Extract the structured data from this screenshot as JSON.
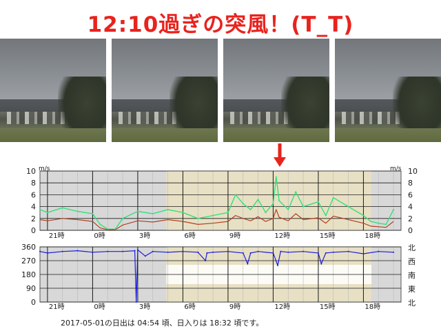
{
  "title": "12:10過ぎの突風！(T_T)",
  "photos": [
    {
      "name": "camera-frame-1"
    },
    {
      "name": "camera-frame-2"
    },
    {
      "name": "camera-frame-3"
    },
    {
      "name": "camera-frame-4"
    }
  ],
  "colors": {
    "title": "#e8231e",
    "arrow": "#e8231e",
    "gust": "#33e07a",
    "mean": "#b0401e",
    "direction": "#1a1adc",
    "daylight": "#e8e0c4",
    "night": "#d8d8d8",
    "grid": "#7a7a7a"
  },
  "chart_data": [
    {
      "type": "line",
      "panel": "wind-speed",
      "yunit_left": "m/s",
      "yunit_right": "m/s",
      "ylim": [
        0,
        10
      ],
      "yticks": [
        0,
        2,
        4,
        6,
        8,
        10
      ],
      "xticks": [
        "21時",
        "0時",
        "3時",
        "6時",
        "9時",
        "12時",
        "15時",
        "18時"
      ],
      "x_hours_range": [
        20.5,
        20.0
      ],
      "daylight": [
        "04:54",
        "18:32"
      ],
      "grid": true,
      "series": [
        {
          "name": "",
          "role": "gust",
          "x": [
            20.5,
            21,
            22,
            23,
            0,
            0.5,
            1,
            1.5,
            2,
            3,
            4,
            5,
            6,
            7,
            8,
            9,
            9.5,
            10,
            10.5,
            11,
            11.5,
            12,
            12.2,
            12.4,
            13,
            13.5,
            14,
            15,
            15.5,
            16,
            17,
            18,
            18.5,
            19,
            19.5,
            20
          ],
          "values": [
            3.5,
            3.0,
            3.8,
            3.2,
            2.8,
            1.0,
            0.2,
            0.2,
            2.0,
            3.2,
            2.8,
            3.5,
            3.0,
            2.0,
            2.5,
            3.0,
            6.0,
            4.5,
            3.5,
            5.2,
            3.0,
            4.5,
            9.0,
            5.0,
            3.5,
            6.5,
            4.0,
            4.8,
            2.5,
            5.5,
            4.0,
            2.5,
            1.5,
            1.2,
            1.0,
            3.5
          ]
        },
        {
          "name": "",
          "role": "mean",
          "x": [
            20.5,
            21,
            22,
            23,
            0,
            0.5,
            1,
            1.5,
            2,
            3,
            4,
            5,
            6,
            7,
            8,
            9,
            9.5,
            10,
            10.5,
            11,
            11.5,
            12,
            12.2,
            12.4,
            13,
            13.5,
            14,
            15,
            15.5,
            16,
            17,
            18,
            18.5,
            19,
            19.5,
            20
          ],
          "values": [
            1.8,
            1.6,
            2.0,
            1.8,
            1.5,
            0.4,
            0.1,
            0.1,
            0.9,
            1.6,
            1.4,
            1.8,
            1.5,
            1.0,
            1.2,
            1.5,
            2.5,
            2.0,
            1.6,
            2.3,
            1.5,
            2.0,
            3.5,
            2.2,
            1.6,
            2.8,
            1.8,
            2.1,
            1.2,
            2.4,
            1.8,
            1.2,
            0.7,
            0.6,
            0.5,
            1.5
          ]
        }
      ]
    },
    {
      "type": "line",
      "panel": "wind-direction",
      "ylim": [
        0,
        360
      ],
      "yticks": [
        0,
        90,
        180,
        270,
        360
      ],
      "right_labels": [
        "北",
        "東",
        "南",
        "西",
        "北"
      ],
      "xticks": [
        "21時",
        "0時",
        "3時",
        "6時",
        "9時",
        "12時",
        "15時",
        "18時"
      ],
      "grid": true,
      "series": [
        {
          "name": "",
          "role": "direction",
          "x": [
            20.5,
            21,
            22,
            23,
            0,
            1,
            2,
            2.8,
            2.9,
            3.0,
            3.5,
            4,
            5,
            6,
            7,
            7.5,
            7.6,
            8,
            9,
            10,
            10.3,
            10.5,
            11,
            12,
            12.3,
            12.5,
            13,
            14,
            15,
            15.2,
            15.5,
            16,
            17,
            18,
            19,
            20
          ],
          "values": [
            330,
            320,
            330,
            335,
            325,
            330,
            330,
            335,
            0,
            340,
            300,
            330,
            325,
            330,
            325,
            270,
            320,
            325,
            330,
            320,
            250,
            320,
            330,
            320,
            240,
            330,
            325,
            330,
            320,
            250,
            320,
            325,
            330,
            315,
            330,
            325
          ]
        }
      ]
    }
  ],
  "footer": "2017-05-01の日出は 04:54 頃、日入りは 18:32 頃です。"
}
